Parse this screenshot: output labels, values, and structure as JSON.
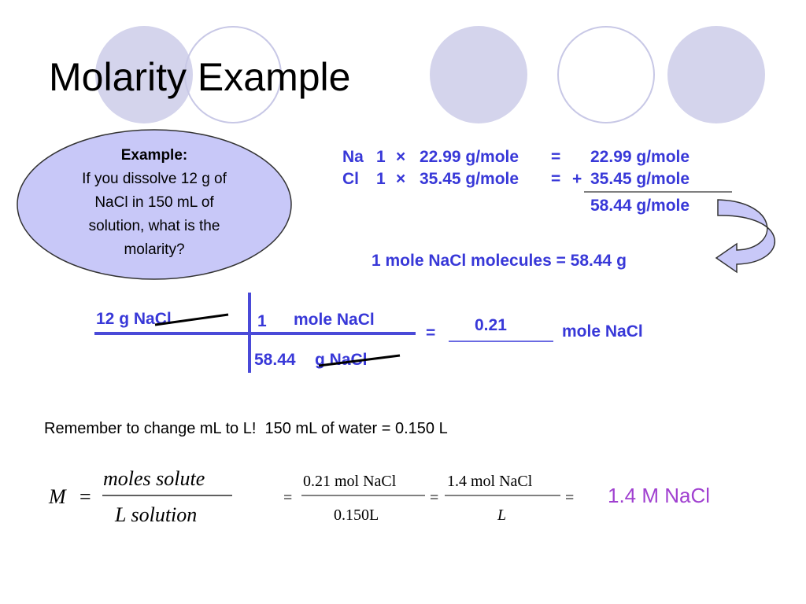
{
  "title": "Molarity Example",
  "example": {
    "heading": "Example:",
    "text": "If you dissolve 12 g of NaCl in 150 mL of solution, what is the molarity?"
  },
  "molar_mass": {
    "rows": [
      {
        "element": "Na",
        "count": "1",
        "times": "×",
        "mass": "22.99 g/mole",
        "equals": "=",
        "result": "22.99 g/mole"
      },
      {
        "element": "Cl",
        "count": "1",
        "times": "×",
        "mass": "35.45 g/mole",
        "equals": "=",
        "plus": "+",
        "result": "35.45 g/mole"
      }
    ],
    "total": "58.44 g/mole"
  },
  "conversion_note": "1 mole NaCl molecules = 58.44 g",
  "factor_label": {
    "given": "12 g NaCl",
    "numerator_count": "1",
    "numerator_unit": "mole NaCl",
    "denominator_count": "58.44",
    "denominator_unit": "g NaCl",
    "equals": "=",
    "answer": "0.21",
    "answer_unit": "mole NaCl"
  },
  "reminder": "Remember to change mL to L!  150 mL of water = 0.150 L",
  "formula": {
    "symbol": "M",
    "equals_1": "=",
    "numerator": "moles solute",
    "denominator": "L solution",
    "equals_2": "=",
    "step1_numerator": "0.21 mol NaCl",
    "step1_denominator": "0.150L",
    "equals_3": "=",
    "step2_numerator": "1.4 mol NaCl",
    "step2_denominator": "L",
    "equals_4": "="
  },
  "result": "1.4 M NaCl"
}
